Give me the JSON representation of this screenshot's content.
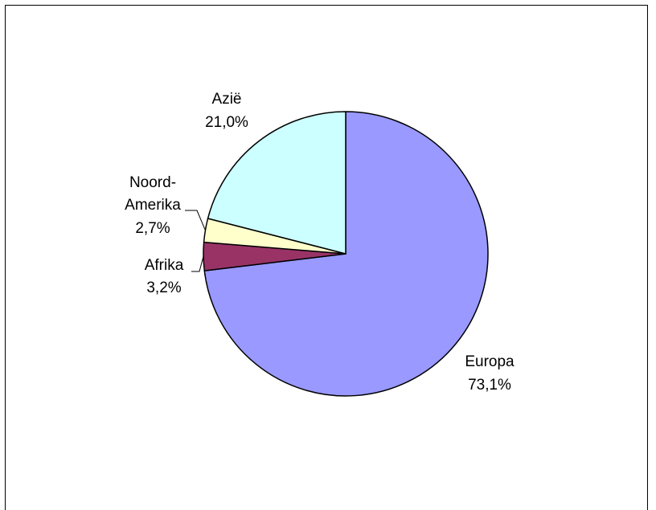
{
  "chart_data": {
    "type": "pie",
    "title": "",
    "slices": [
      {
        "label": "Europa",
        "value": 73.1,
        "display": "73,1%",
        "color": "#9999FF"
      },
      {
        "label": "Afrika",
        "value": 3.2,
        "display": "3,2%",
        "color": "#993366"
      },
      {
        "label": "Noord-Amerika",
        "label_lines": [
          "Noord-",
          "Amerika"
        ],
        "value": 2.7,
        "display": "2,7%",
        "color": "#FFFFCC"
      },
      {
        "label": "Azië",
        "value": 21.0,
        "display": "21,0%",
        "color": "#CCFFFF"
      }
    ],
    "start_angle_deg": 0,
    "direction": "clockwise",
    "legend": "none",
    "label_style": "category-and-percent"
  }
}
